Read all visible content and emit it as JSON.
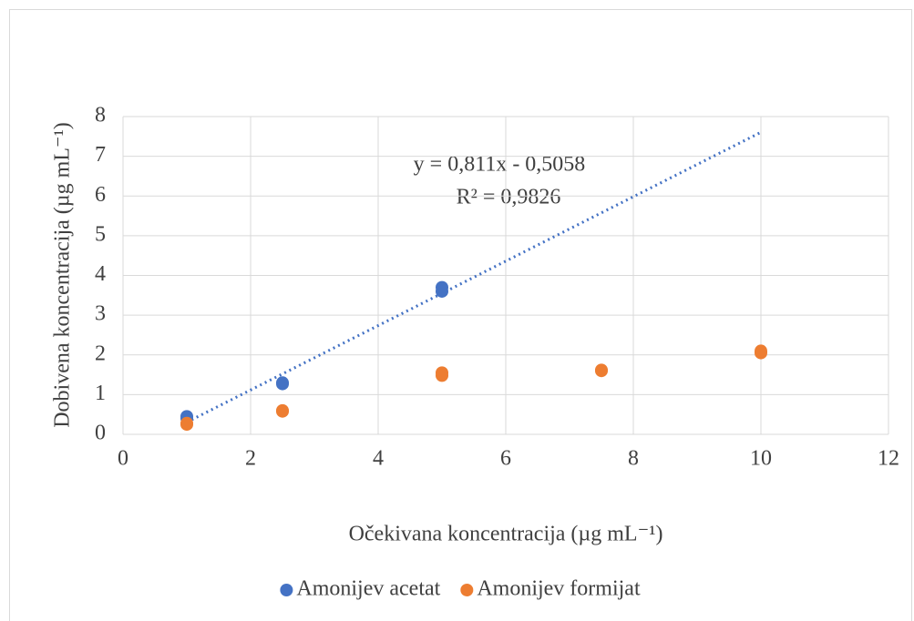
{
  "chart_data": {
    "type": "scatter",
    "x_label": "Očekivana koncentracija (µg mL⁻¹)",
    "y_label": "Dobivena koncentracija (µg mL⁻¹)",
    "xlim": [
      0,
      12
    ],
    "xticks": [
      0,
      2,
      4,
      6,
      8,
      10,
      12
    ],
    "ylim": [
      0,
      8
    ],
    "yticks": [
      0,
      1,
      2,
      3,
      4,
      5,
      6,
      7,
      8
    ],
    "grid": true,
    "legend": "bottom",
    "series": [
      {
        "name": "Amonijev acetat",
        "color": "#4472c4",
        "x": [
          1,
          1,
          2.5,
          2.5,
          5,
          5
        ],
        "values": [
          0.45,
          0.4,
          1.27,
          1.3,
          3.6,
          3.7
        ]
      },
      {
        "name": "Amonijev formijat",
        "color": "#ed7d31",
        "x": [
          1,
          1,
          2.5,
          2.5,
          5,
          5,
          7.5,
          7.5,
          10,
          10
        ],
        "values": [
          0.25,
          0.28,
          0.58,
          0.6,
          1.48,
          1.55,
          1.6,
          1.62,
          2.05,
          2.1
        ]
      }
    ],
    "trendline": {
      "equation": "y = 0,811x - 0,5058",
      "r2": "R² = 0,9826",
      "slope": 0.811,
      "intercept": -0.5058,
      "x": [
        1,
        10
      ],
      "color": "#4472c4"
    }
  }
}
